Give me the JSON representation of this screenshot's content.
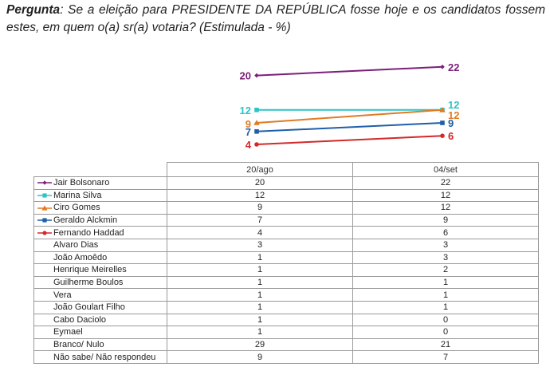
{
  "question": {
    "label": "Pergunta",
    "text": ": Se a eleição para PRESIDENTE DA REPÚBLICA fosse hoje e os candidatos fossem estes, em quem o(a) sr(a) votaria? (Estimulada - %)"
  },
  "chart_data": {
    "type": "line",
    "x": [
      "20/ago",
      "04/set"
    ],
    "series": [
      {
        "name": "Jair Bolsonaro",
        "values": [
          20,
          22
        ],
        "color": "#7b1f7b",
        "marker": "diamond"
      },
      {
        "name": "Marina Silva",
        "values": [
          12,
          12
        ],
        "color": "#2ec4c4",
        "marker": "square"
      },
      {
        "name": "Ciro Gomes",
        "values": [
          9,
          12
        ],
        "color": "#e07b24",
        "marker": "triangle"
      },
      {
        "name": "Geraldo Alckmin",
        "values": [
          7,
          9
        ],
        "color": "#1f5fa8",
        "marker": "square"
      },
      {
        "name": "Fernando Haddad",
        "values": [
          4,
          6
        ],
        "color": "#d22a2a",
        "marker": "circle"
      },
      {
        "name": "Alvaro Dias",
        "values": [
          3,
          3
        ]
      },
      {
        "name": "João Amoêdo",
        "values": [
          1,
          3
        ]
      },
      {
        "name": "Henrique Meirelles",
        "values": [
          1,
          2
        ]
      },
      {
        "name": "Guilherme Boulos",
        "values": [
          1,
          1
        ]
      },
      {
        "name": "Vera",
        "values": [
          1,
          1
        ]
      },
      {
        "name": "João Goulart Filho",
        "values": [
          1,
          1
        ]
      },
      {
        "name": "Cabo Daciolo",
        "values": [
          1,
          0
        ]
      },
      {
        "name": "Eymael",
        "values": [
          1,
          0
        ]
      },
      {
        "name": "Branco/ Nulo",
        "values": [
          29,
          21
        ]
      },
      {
        "name": "Não sabe/ Não respondeu",
        "values": [
          9,
          7
        ]
      }
    ],
    "plotted_series": 5
  }
}
